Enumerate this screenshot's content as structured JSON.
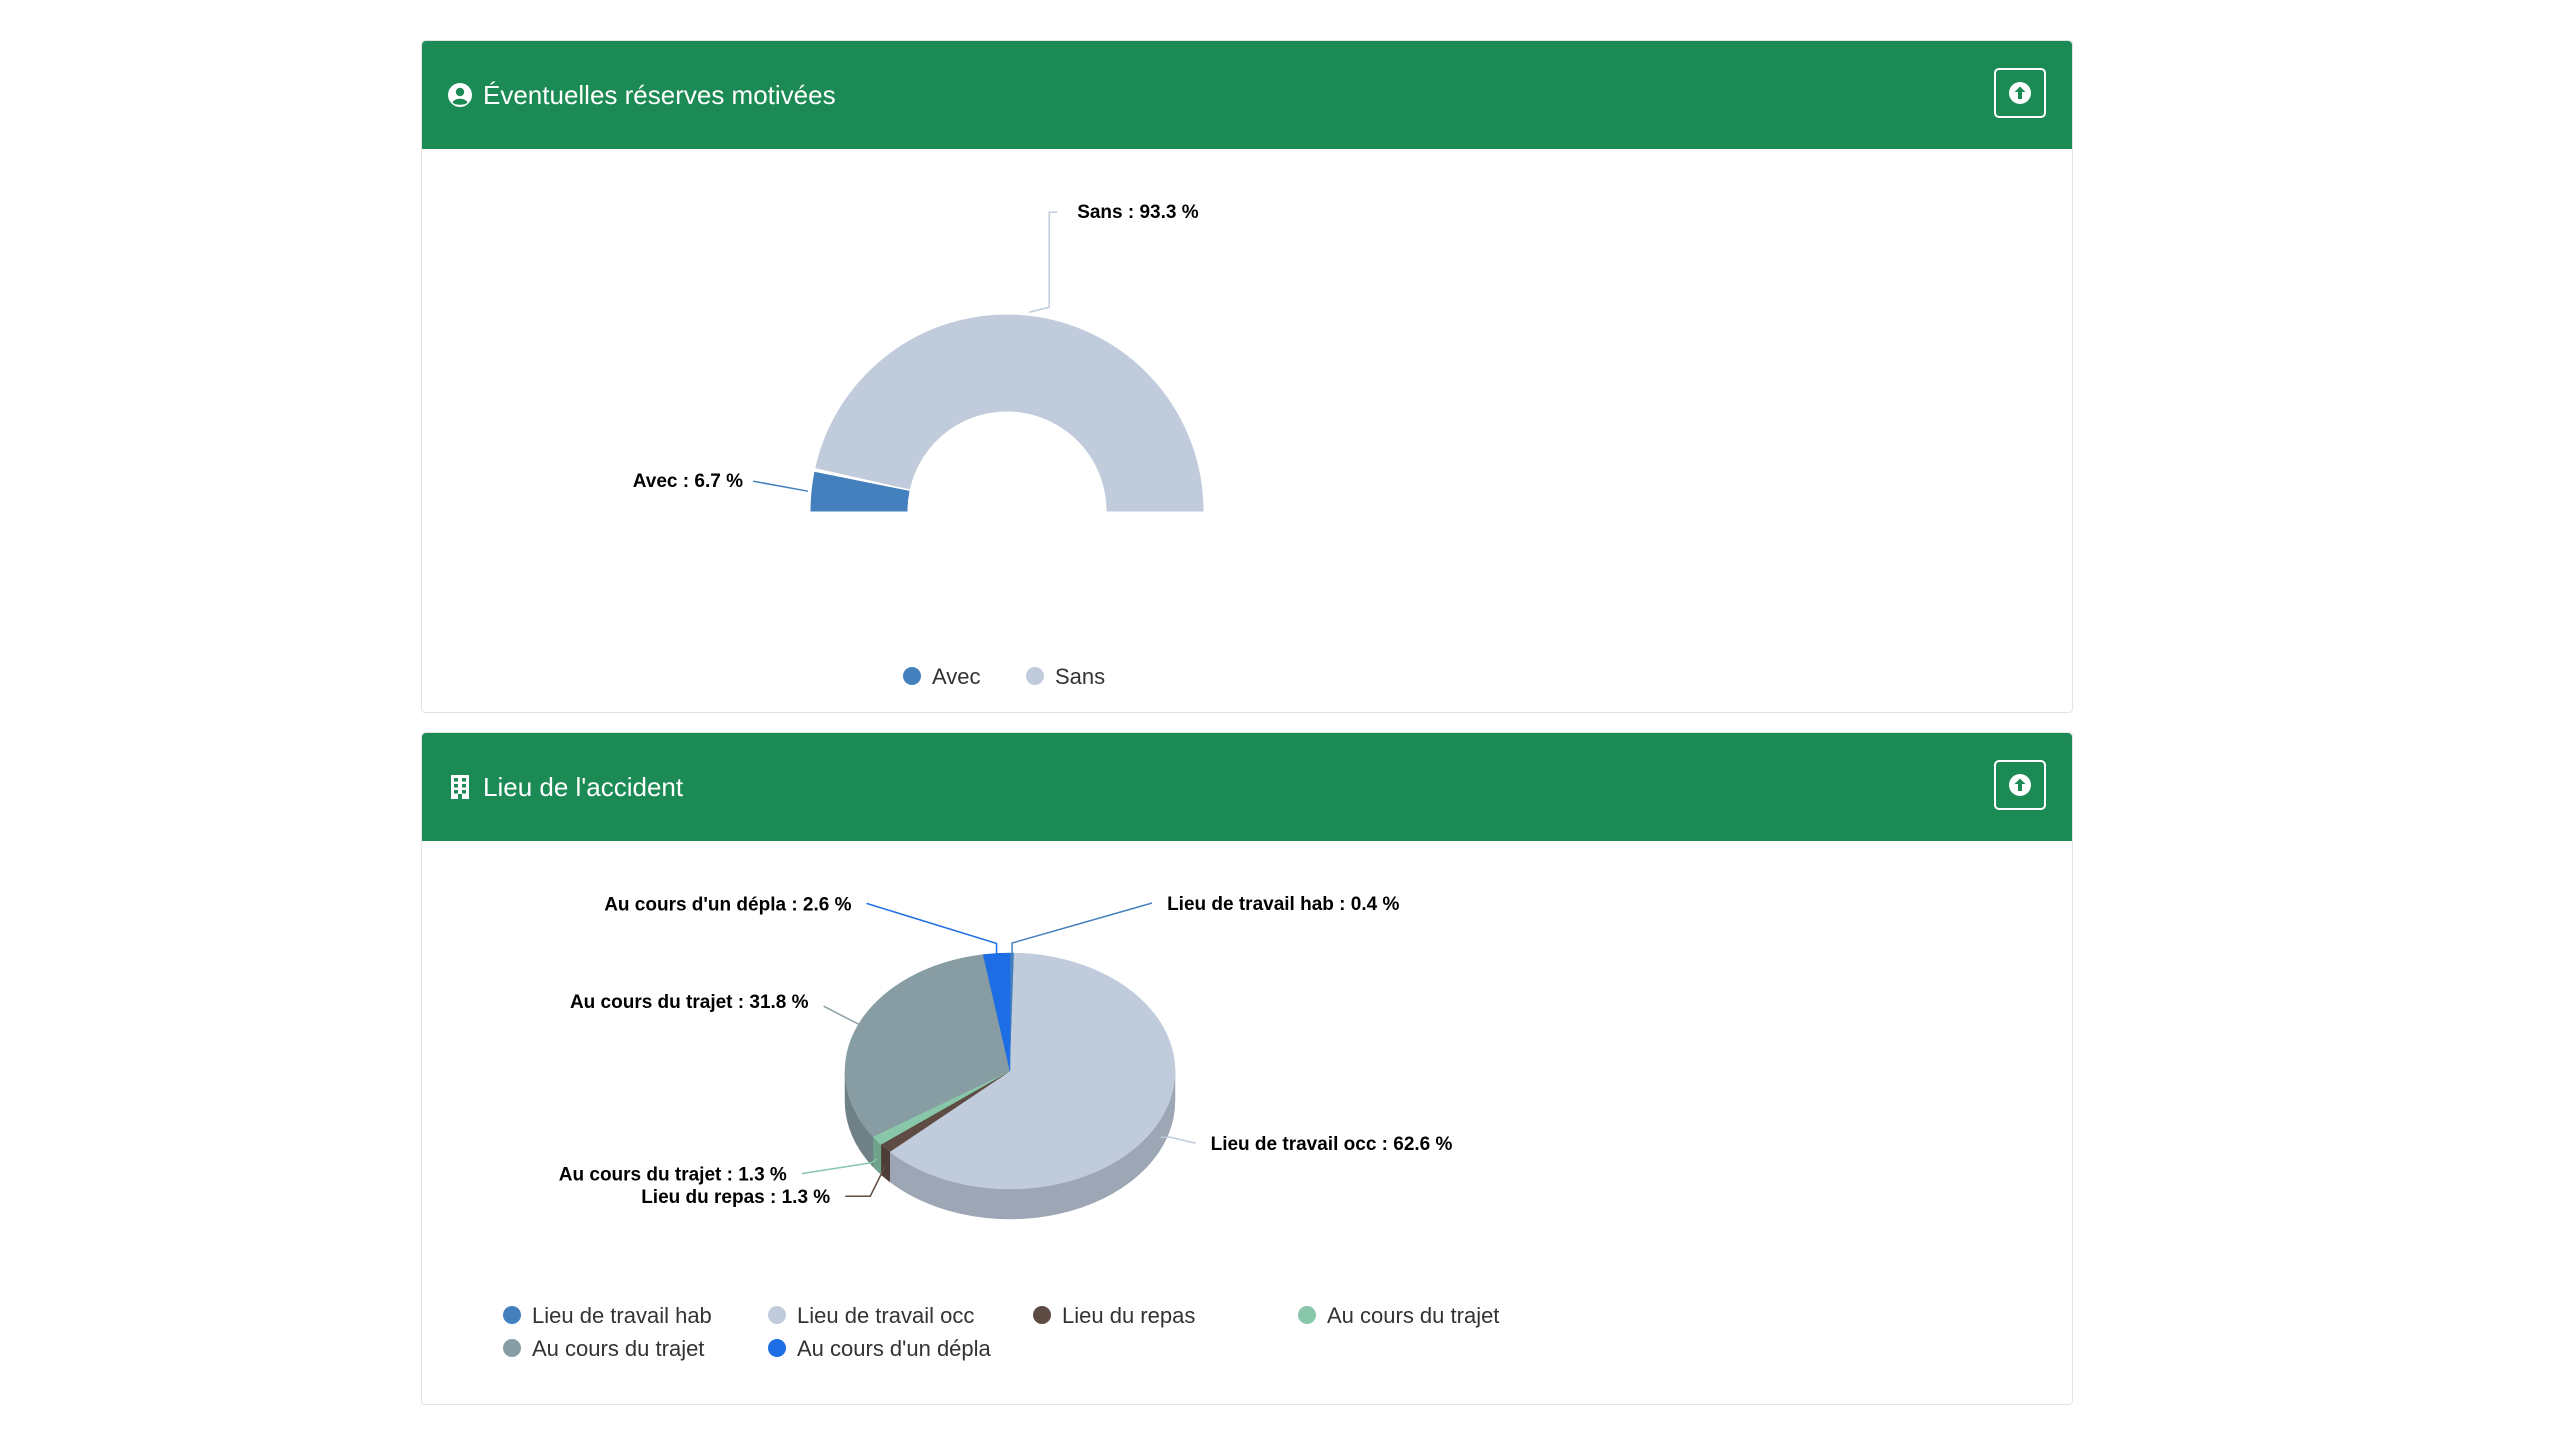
{
  "panels": [
    {
      "title": "Éventuelles réserves motivées",
      "icon": "user-circle-icon",
      "action_icon": "arrow-circle-up-icon"
    },
    {
      "title": "Lieu de l'accident",
      "icon": "building-icon",
      "action_icon": "arrow-circle-up-icon"
    }
  ],
  "colors": {
    "header": "#1b8a54"
  },
  "chart_data": [
    {
      "type": "pie",
      "variant": "semi-donut",
      "series": [
        {
          "name": "Avec",
          "value": 6.7,
          "label": "Avec : 6.7 %",
          "color": "#4380bd"
        },
        {
          "name": "Sans",
          "value": 93.3,
          "label": "Sans : 93.3 %",
          "color": "#c0cbdc"
        }
      ],
      "legend_position": "bottom"
    },
    {
      "type": "pie",
      "variant": "3d",
      "series": [
        {
          "name": "Lieu de travail hab",
          "value": 0.4,
          "label": "Lieu de travail hab : 0.4 %",
          "color": "#4380bd"
        },
        {
          "name": "Lieu de travail occ",
          "value": 62.6,
          "label": "Lieu de travail occ : 62.6 %",
          "color": "#c0cbdc"
        },
        {
          "name": "Lieu du repas",
          "value": 1.3,
          "label": "Lieu du repas : 1.3 %",
          "color": "#5e4b43"
        },
        {
          "name": "Au cours du trajet",
          "value": 1.3,
          "label": "Au cours du trajet : 1.3 %",
          "color": "#88c7a9"
        },
        {
          "name": "Au cours du trajet",
          "value": 31.8,
          "label": "Au cours du trajet : 31.8 %",
          "color": "#879da3"
        },
        {
          "name": "Au cours d'un dépla",
          "value": 2.6,
          "label": "Au cours d'un dépla : 2.6 %",
          "color": "#1d6de5"
        }
      ],
      "legend_position": "bottom"
    }
  ]
}
